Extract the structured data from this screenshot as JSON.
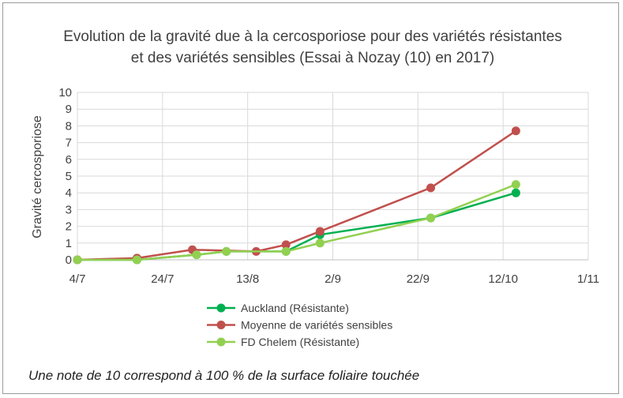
{
  "chart_data": {
    "type": "line",
    "title_line1": "Evolution de la gravité due à la cercosporiose pour des variétés résistantes",
    "title_line2": "et des variétés sensibles (Essai à Nozay (10) en 2017)",
    "ylabel": "Gravité cercosporiose",
    "xlabel": "",
    "x_ticks": [
      "4/7",
      "24/7",
      "13/8",
      "2/9",
      "22/9",
      "12/10",
      "1/11"
    ],
    "y_ticks": [
      "0",
      "1",
      "2",
      "3",
      "4",
      "5",
      "6",
      "7",
      "8",
      "9",
      "10"
    ],
    "ylim": [
      0,
      10
    ],
    "xlim": [
      "2017-07-04",
      "2017-11-01"
    ],
    "grid": true,
    "legend_position": "bottom",
    "series": [
      {
        "name": "Auckland (Résistante)",
        "color": "#00b050",
        "x": [
          "2017-07-04",
          "2017-07-18",
          "2017-08-01",
          "2017-08-08",
          "2017-08-22",
          "2017-08-30",
          "2017-09-25",
          "2017-10-15"
        ],
        "values": [
          0,
          0,
          0.3,
          0.5,
          0.5,
          1.5,
          2.5,
          4.0
        ]
      },
      {
        "name": "Moyenne de variétés sensibles",
        "color": "#c0504d",
        "x": [
          "2017-07-04",
          "2017-07-18",
          "2017-07-31",
          "2017-08-15",
          "2017-08-22",
          "2017-08-30",
          "2017-09-25",
          "2017-10-15"
        ],
        "values": [
          0,
          0.1,
          0.6,
          0.5,
          0.9,
          1.7,
          4.3,
          7.7
        ]
      },
      {
        "name": "FD Chelem (Résistante)",
        "color": "#92d050",
        "x": [
          "2017-07-04",
          "2017-07-18",
          "2017-08-01",
          "2017-08-08",
          "2017-08-22",
          "2017-08-30",
          "2017-09-25",
          "2017-10-15"
        ],
        "values": [
          0,
          0,
          0.3,
          0.5,
          0.5,
          1.0,
          2.5,
          4.5
        ]
      }
    ]
  },
  "note": "Une note de 10 correspond  à 100 % de la surface foliaire touchée"
}
